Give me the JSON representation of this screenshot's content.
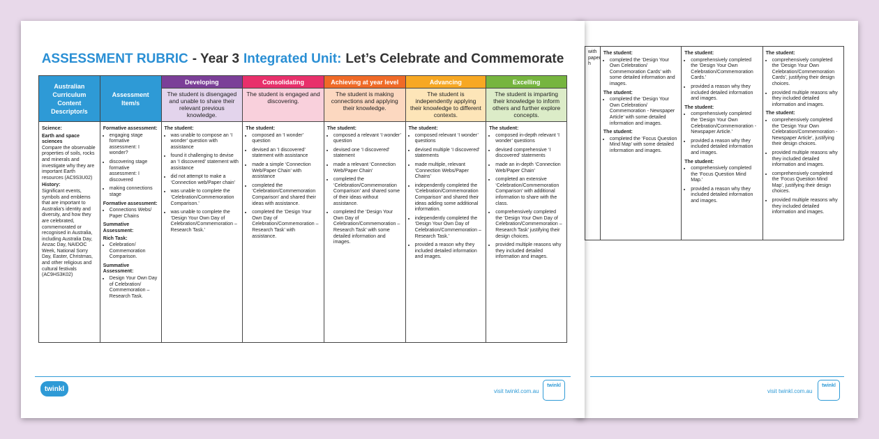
{
  "front": {
    "title": [
      {
        "text": "ASSESSMENT RUBRIC",
        "color": "#2a8fd4"
      },
      {
        "text": "- Year 3",
        "color": "#333333"
      },
      {
        "text": "Integrated Unit:",
        "color": "#2a8fd4"
      },
      {
        "text": "Let’s Celebrate and Commemorate",
        "color": "#333333"
      }
    ],
    "table": {
      "columns": [
        {
          "header": "Australian Curriculum Content Descriptor/s",
          "color": "#2e9ad6",
          "tint": "#ffffff"
        },
        {
          "header": "Assessment Item/s",
          "color": "#2e9ad6",
          "tint": "#ffffff"
        },
        {
          "header": "Developing",
          "descriptor": "The student is disengaged and unable to share their relevant previous knowledge.",
          "color": "#7b3f98",
          "tint": "#e3d4ec"
        },
        {
          "header": "Consolidating",
          "descriptor": "The student is engaged and discovering.",
          "color": "#e8306b",
          "tint": "#f9d0dc"
        },
        {
          "header": "Achieving at year level",
          "descriptor": "The student is making connections and applying their knowledge.",
          "color": "#f06a27",
          "tint": "#fcd8c0"
        },
        {
          "header": "Advancing",
          "descriptor": "The student is independently applying their knowledge to different contexts.",
          "color": "#f7a823",
          "tint": "#fde5b8"
        },
        {
          "header": "Excelling",
          "descriptor": "The student is imparting their knowledge to inform others and further explore concepts.",
          "color": "#76b53f",
          "tint": "#dcecc8"
        }
      ],
      "body": [
        [
          {
            "heading": "Science:"
          },
          {
            "heading": "Earth and space sciences"
          },
          {
            "text": "Compare the observable properties of soils, rocks and minerals and investigate why they are important Earth resources (AC9S3U02)"
          },
          {
            "heading": "History:"
          },
          {
            "text": "Significant events, symbols and emblems that are important to Australia’s identity and diversity, and how they are celebrated, commemorated or recognised in Australia, including Australia Day, Anzac Day, NAIDOC Week, National Sorry Day, Easter, Christmas, and other religious and cultural festivals (AC9HS3K02)"
          }
        ],
        [
          {
            "heading": "Formative assessment:"
          },
          {
            "bullets": [
              "engaging stage formative assessment: I wonder?",
              "discovering stage formative assessment: I discovered",
              "making connections stage"
            ]
          },
          {
            "heading": "Formative assessment:"
          },
          {
            "bullets": [
              "Connections Webs/ Paper Chains"
            ]
          },
          {
            "heading": "Summative Assessment:"
          },
          {
            "heading": "Rich Task:"
          },
          {
            "bullets": [
              "Celebration/ Commemoration Comparison."
            ]
          },
          {
            "heading": "Summative Assessment:"
          },
          {
            "bullets": [
              "Design Your Own Day of Celebration/ Commemoration – Research Task."
            ]
          }
        ],
        [
          {
            "heading": "The student:"
          },
          {
            "bullets": [
              "was unable to compose an ‘I wonder’ question with assistance",
              "found it challenging to devise an ‘I discovered’ statement with assistance",
              "did not attempt to make a ‘Connection web/Paper chain’",
              "was unable to complete the ‘Celebration/Commemoration Comparison.’",
              "was unable to complete the ‘Design Your Own Day of Celebration/Commemoration – Research Task.’"
            ]
          }
        ],
        [
          {
            "heading": "The student:"
          },
          {
            "bullets": [
              "composed an ‘I wonder’ question",
              "devised an ‘I discovered’ statement with assistance",
              "made a simple ‘Connection Web/Paper Chain’ with assistance",
              "completed the ‘Celebration/Commemoration Comparison’ and shared their ideas with assistance.",
              "completed the ‘Design Your Own Day of Celebration/Commemoration – Research Task’ with assistance."
            ]
          }
        ],
        [
          {
            "heading": "The student:"
          },
          {
            "bullets": [
              "composed a relevant ‘I wonder’ question",
              "devised one ‘I discovered’ statement",
              "made a relevant ‘Connection Web/Paper Chain’",
              "completed the ‘Celebration/Commemoration Comparison’ and shared some of their ideas without assistance.",
              "completed the ‘Design Your Own Day of Celebration/Commemoration – Research Task’ with some detailed information and images."
            ]
          }
        ],
        [
          {
            "heading": "The student:"
          },
          {
            "bullets": [
              "composed relevant ‘I wonder’ questions",
              "devised multiple ‘I discovered’ statements",
              "made multiple, relevant ‘Connection Webs/Paper Chains’",
              "independently completed the ‘Celebration/Commemoration Comparison’ and shared their ideas adding some additional information.",
              "independently completed the ‘Design Your Own Day of Celebration/Commemoration – Research Task.’",
              "provided a reason why they included detailed information and images."
            ]
          }
        ],
        [
          {
            "heading": "The student:"
          },
          {
            "bullets": [
              "composed in-depth relevant ‘I wonder’ questions",
              "devised comprehensive ‘I discovered’ statements",
              "made an in-depth ‘Connection Web/Paper Chain’",
              "completed an extensive ‘Celebration/Commemoration Comparison’ with additional information to share with the class.",
              "comprehensively completed the ‘Design Your Own Day of Celebration/Commemoration – Research Task’ justifying their design choices.",
              "provided multiple reasons why they included detailed information and images."
            ]
          }
        ]
      ]
    },
    "footer": {
      "logo": "twinkl",
      "url": "visit twinkl.com.au",
      "badge": "twinkl"
    }
  },
  "back": {
    "table": {
      "body": [
        [
          {
            "text": "with"
          },
          {
            "text": "paper"
          },
          {
            "text": "h"
          }
        ],
        [
          {
            "heading": "The student:"
          },
          {
            "bullets": [
              "completed the ‘Design Your Own Celebration/ Commemoration Cards’ with some detailed information and images."
            ]
          },
          {
            "heading": "The student:"
          },
          {
            "bullets": [
              "completed the ‘Design Your Own Celebration/ Commemoration - Newspaper Article’ with some detailed information and images."
            ]
          },
          {
            "heading": "The student:"
          },
          {
            "bullets": [
              "completed the ‘Focus Question Mind Map’ with some detailed information and images."
            ]
          }
        ],
        [
          {
            "heading": "The student:"
          },
          {
            "bullets": [
              "comprehensively completed the ‘Design Your Own Celebration/Commemoration Cards.’",
              "provided a reason why they included detailed information and images."
            ]
          },
          {
            "heading": "The student:"
          },
          {
            "bullets": [
              "comprehensively completed the ‘Design Your Own Celebration/Commemoration - Newspaper Article.’",
              "provided a reason why they included detailed information and images."
            ]
          },
          {
            "heading": "The student:"
          },
          {
            "bullets": [
              "comprehensively completed the ‘Focus Question Mind Map.’",
              "provided a reason why they included detailed information and images."
            ]
          }
        ],
        [
          {
            "heading": "The student:"
          },
          {
            "bullets": [
              "comprehensively completed the ‘Design Your Own Celebration/Commemoration Cards’, justifying their design choices.",
              "provided multiple reasons why they included detailed information and images."
            ]
          },
          {
            "heading": "The student:"
          },
          {
            "bullets": [
              "comprehensively completed the ‘Design Your Own Celebration/Commemoration - Newspaper Article’, justifying their design choices.",
              "provided multiple reasons why they included detailed information and images.",
              "comprehensively completed the ‘Focus Question Mind Map’, justifying their design choices.",
              "provided multiple reasons why they included detailed information and images."
            ]
          }
        ]
      ]
    },
    "footer": {
      "url": "visit twinkl.com.au",
      "badge": "twinkl"
    }
  }
}
